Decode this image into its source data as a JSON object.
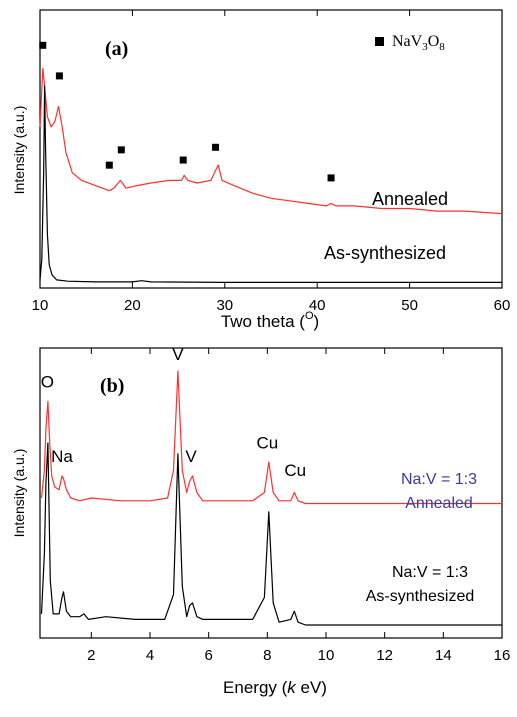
{
  "chart_data": [
    {
      "panel_label": "(a)",
      "type": "line",
      "xlabel": "Two theta (",
      "xlabel_sup": "O",
      "xlabel_end": ")",
      "ylabel": "Intensity (a.u.)",
      "xlim": [
        10,
        60
      ],
      "xticks": [
        10,
        20,
        30,
        40,
        50,
        60
      ],
      "legend": {
        "label": "NaV",
        "sub1": "3",
        "mid": "O",
        "sub2": "8",
        "marker": "square",
        "position": "top-right"
      },
      "series": [
        {
          "name": "Annealed",
          "color": "#ff3030",
          "x": [
            10.0,
            10.3,
            10.5,
            10.8,
            11.2,
            11.6,
            12.0,
            12.4,
            12.8,
            13.5,
            14.5,
            16.0,
            17.5,
            18.0,
            18.7,
            19.3,
            20.5,
            22.0,
            24.0,
            25.3,
            25.6,
            26.0,
            27.0,
            28.5,
            29.0,
            29.3,
            29.7,
            31.0,
            33.0,
            35.0,
            37.0,
            39.0,
            41.0,
            41.5,
            42.0,
            44.0,
            47.0,
            50.0,
            53.0,
            56.0,
            60.0
          ],
          "y": [
            0.62,
            0.85,
            0.78,
            0.66,
            0.62,
            0.64,
            0.7,
            0.62,
            0.52,
            0.44,
            0.41,
            0.39,
            0.37,
            0.38,
            0.41,
            0.38,
            0.39,
            0.4,
            0.41,
            0.41,
            0.43,
            0.41,
            0.4,
            0.41,
            0.45,
            0.47,
            0.41,
            0.39,
            0.36,
            0.34,
            0.33,
            0.32,
            0.31,
            0.32,
            0.31,
            0.31,
            0.3,
            0.3,
            0.29,
            0.29,
            0.28
          ]
        },
        {
          "name": "As-synthesized",
          "color": "#000000",
          "x": [
            10.0,
            10.2,
            10.4,
            10.5,
            10.6,
            10.8,
            11.0,
            11.3,
            11.8,
            13.0,
            16.0,
            20.0,
            21.0,
            22.0,
            30.0,
            40.0,
            50.0,
            60.0
          ],
          "y": [
            0.02,
            0.1,
            0.45,
            0.78,
            0.55,
            0.2,
            0.08,
            0.04,
            0.02,
            0.015,
            0.012,
            0.012,
            0.017,
            0.012,
            0.01,
            0.01,
            0.01,
            0.01
          ]
        }
      ],
      "markers": [
        {
          "x": 10.3,
          "y": 0.94
        },
        {
          "x": 12.1,
          "y": 0.82
        },
        {
          "x": 17.5,
          "y": 0.47
        },
        {
          "x": 18.8,
          "y": 0.53
        },
        {
          "x": 25.5,
          "y": 0.49
        },
        {
          "x": 29.0,
          "y": 0.54
        },
        {
          "x": 41.5,
          "y": 0.42
        }
      ],
      "annotations": [
        "Annealed",
        "As-synthesized"
      ]
    },
    {
      "panel_label": "(b)",
      "type": "line",
      "xlabel": "Energy (",
      "xlabel_italic": "k",
      "xlabel_end": " eV)",
      "ylabel": "Intensity (a.u.)",
      "xlim": [
        0.25,
        16
      ],
      "xticks": [
        2,
        4,
        6,
        8,
        10,
        12,
        14,
        16
      ],
      "series": [
        {
          "name": "Na:V = 1:3 Annealed",
          "color": "#ff3030",
          "x": [
            0.3,
            0.4,
            0.45,
            0.52,
            0.58,
            0.65,
            0.75,
            0.9,
            1.0,
            1.05,
            1.15,
            1.3,
            1.6,
            2.0,
            3.0,
            4.0,
            4.6,
            4.8,
            4.95,
            5.1,
            5.25,
            5.35,
            5.45,
            5.6,
            5.8,
            6.5,
            7.5,
            7.9,
            8.05,
            8.2,
            8.4,
            8.8,
            8.92,
            9.05,
            9.3,
            10.0,
            12.0,
            14.0,
            16.0
          ],
          "y": [
            0.5,
            0.6,
            0.75,
            0.85,
            0.7,
            0.58,
            0.54,
            0.53,
            0.58,
            0.57,
            0.53,
            0.5,
            0.49,
            0.5,
            0.49,
            0.49,
            0.5,
            0.6,
            0.96,
            0.6,
            0.52,
            0.56,
            0.58,
            0.52,
            0.49,
            0.49,
            0.49,
            0.52,
            0.63,
            0.52,
            0.49,
            0.49,
            0.52,
            0.49,
            0.48,
            0.48,
            0.48,
            0.48,
            0.48
          ]
        },
        {
          "name": "Na:V = 1:3 As-synthesized",
          "color": "#000000",
          "x": [
            0.3,
            0.4,
            0.45,
            0.52,
            0.6,
            0.7,
            0.9,
            1.0,
            1.05,
            1.15,
            1.3,
            1.6,
            1.75,
            1.9,
            2.5,
            3.5,
            4.5,
            4.8,
            4.95,
            5.1,
            5.25,
            5.35,
            5.45,
            5.6,
            5.8,
            6.5,
            7.5,
            7.9,
            8.05,
            8.2,
            8.4,
            8.8,
            8.92,
            9.05,
            9.3,
            10.0,
            12.0,
            14.0,
            16.0
          ],
          "y": [
            0.08,
            0.3,
            0.55,
            0.7,
            0.2,
            0.08,
            0.08,
            0.14,
            0.16,
            0.09,
            0.07,
            0.07,
            0.08,
            0.06,
            0.07,
            0.06,
            0.06,
            0.15,
            0.66,
            0.18,
            0.07,
            0.11,
            0.12,
            0.07,
            0.06,
            0.06,
            0.06,
            0.14,
            0.45,
            0.12,
            0.05,
            0.06,
            0.09,
            0.05,
            0.04,
            0.04,
            0.04,
            0.04,
            0.04
          ]
        }
      ],
      "peak_labels": [
        {
          "text": "O",
          "x": 0.5,
          "y": 0.9
        },
        {
          "text": "Na",
          "x": 1.0,
          "y": 0.63
        },
        {
          "text": "V",
          "x": 4.95,
          "y": 1.0
        },
        {
          "text": "V",
          "x": 5.4,
          "y": 0.63
        },
        {
          "text": "Cu",
          "x": 8.0,
          "y": 0.68
        },
        {
          "text": "Cu",
          "x": 8.95,
          "y": 0.58
        }
      ],
      "annotations": {
        "annealed_line1": "Na:V = 1:3",
        "annealed_line2": "Annealed",
        "annealed_color": "#3a3aa0",
        "as_line1": "Na:V = 1:3",
        "as_line2": "As-synthesized"
      }
    }
  ]
}
